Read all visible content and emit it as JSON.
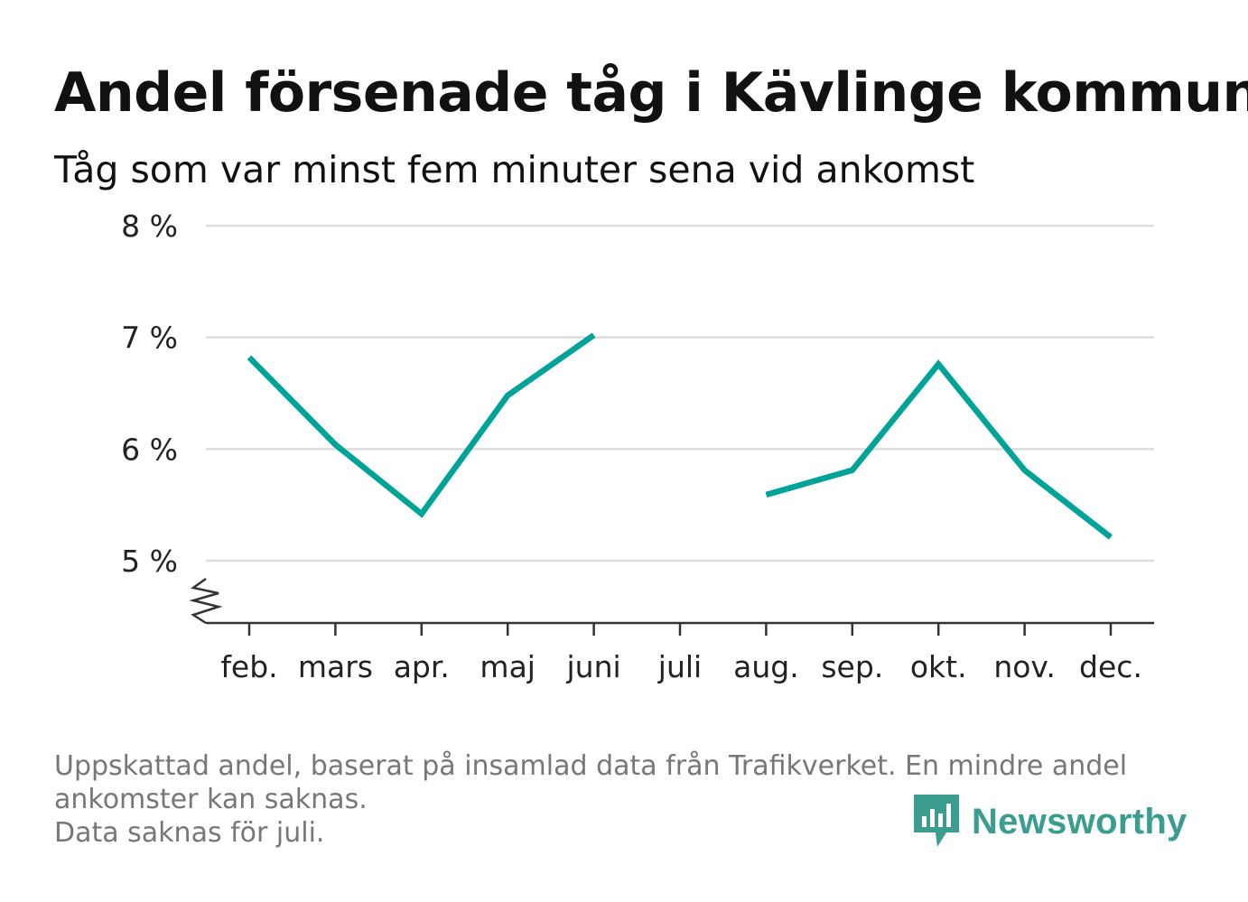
{
  "title": "Andel försenade tåg i Kävlinge kommun",
  "subtitle": "Tåg som var minst fem minuter sena vid ankomst",
  "chart_data": {
    "type": "line",
    "categories": [
      "feb.",
      "mars",
      "apr.",
      "maj",
      "juni",
      "juli",
      "aug.",
      "sep.",
      "okt.",
      "nov.",
      "dec."
    ],
    "series": [
      {
        "values": [
          6.82,
          6.04,
          5.42,
          6.48,
          7.02,
          null,
          5.59,
          5.81,
          6.76,
          5.81,
          5.21
        ]
      }
    ],
    "y_ticks": [
      5,
      6,
      7,
      8
    ],
    "y_tick_labels": [
      "5 %",
      "6 %",
      "7 %",
      "8 %"
    ],
    "ylim": [
      4.5,
      8
    ],
    "y_axis_break": true,
    "grid": "horizontal",
    "line_color": "#00a398"
  },
  "notes": [
    "Uppskattad andel, baserat på insamlad data från Trafikverket. En mindre andel",
    "ankomster kan saknas.",
    "Data saknas för juli."
  ],
  "brand": {
    "name": "Newsworthy",
    "icon": "newsworthy-bar-chart-icon",
    "color": "#3a9d8f"
  }
}
